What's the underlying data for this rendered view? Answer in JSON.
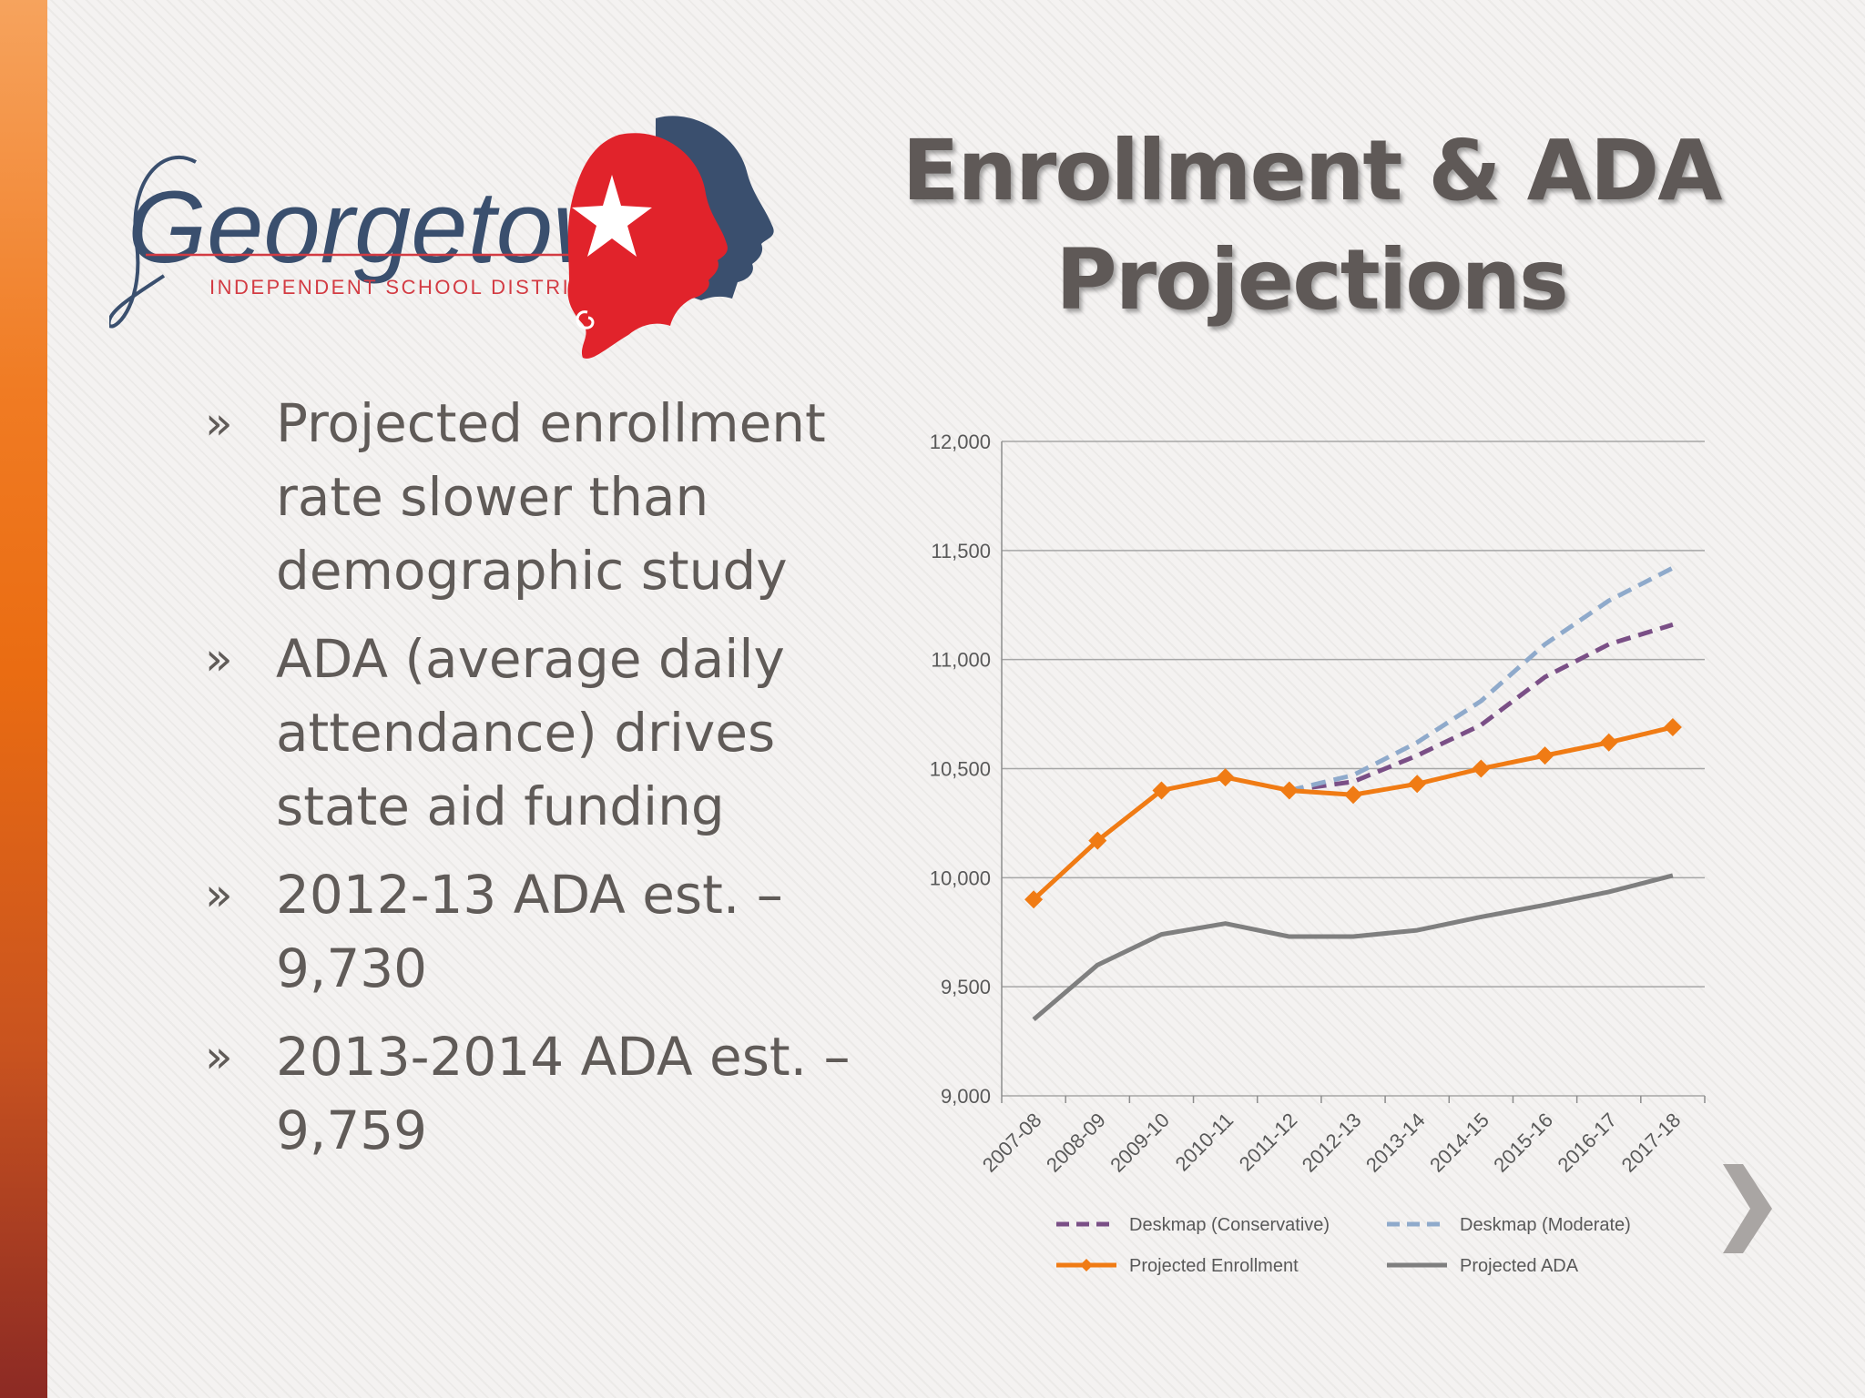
{
  "logo": {
    "name": "Georgetown",
    "subtitle": "INDEPENDENT SCHOOL DISTRICT"
  },
  "title": {
    "line1": "Enrollment & ADA",
    "line2": "Projections"
  },
  "bullets": [
    {
      "marker": "»",
      "lines": [
        "Projected enrollment",
        "rate slower than",
        "demographic study"
      ]
    },
    {
      "marker": "»",
      "lines": [
        "ADA (average daily",
        "attendance) drives",
        "state aid funding"
      ]
    },
    {
      "marker": "»",
      "lines": [
        "2012-13 ADA est. –",
        "9,730"
      ]
    },
    {
      "marker": "»",
      "lines": [
        "2013-2014 ADA est. –",
        "9,759"
      ]
    }
  ],
  "colors": {
    "accent_orange": "#f07b14",
    "logo_red": "#e1232b",
    "logo_navy": "#3a4f6e",
    "title_gray": "#5f5957"
  },
  "icons": {
    "next": "chevron-right-icon"
  },
  "chart_data": {
    "type": "line",
    "categories": [
      "2007-08",
      "2008-09",
      "2009-10",
      "2010-11",
      "2011-12",
      "2012-13",
      "2013-14",
      "2014-15",
      "2015-16",
      "2016-17",
      "2017-18"
    ],
    "ylim": [
      9000,
      12000
    ],
    "yticks": [
      9000,
      9500,
      10000,
      10500,
      11000,
      11500,
      12000
    ],
    "ytick_labels": [
      "9,000",
      "9,500",
      "10,000",
      "10,500",
      "11,000",
      "11,500",
      "12,000"
    ],
    "grid": true,
    "legend_position": "bottom",
    "series": [
      {
        "name": "Deskmap (Conservative)",
        "color": "#7a4f86",
        "dash": true,
        "marker": false,
        "values": [
          null,
          null,
          null,
          null,
          10400,
          10440,
          10560,
          10700,
          10920,
          11070,
          11160
        ]
      },
      {
        "name": "Deskmap (Moderate)",
        "color": "#8faacb",
        "dash": true,
        "marker": false,
        "values": [
          null,
          null,
          null,
          null,
          10400,
          10470,
          10620,
          10810,
          11070,
          11270,
          11420
        ]
      },
      {
        "name": "Projected Enrollment",
        "color": "#f07b14",
        "dash": false,
        "marker": true,
        "values": [
          9900,
          10170,
          10400,
          10460,
          10400,
          10380,
          10430,
          10500,
          10560,
          10620,
          10690
        ]
      },
      {
        "name": "Projected ADA",
        "color": "#7f7f7f",
        "dash": false,
        "marker": false,
        "values": [
          9350,
          9600,
          9740,
          9790,
          9730,
          9730,
          9759,
          9820,
          9875,
          9935,
          10010
        ]
      }
    ]
  }
}
